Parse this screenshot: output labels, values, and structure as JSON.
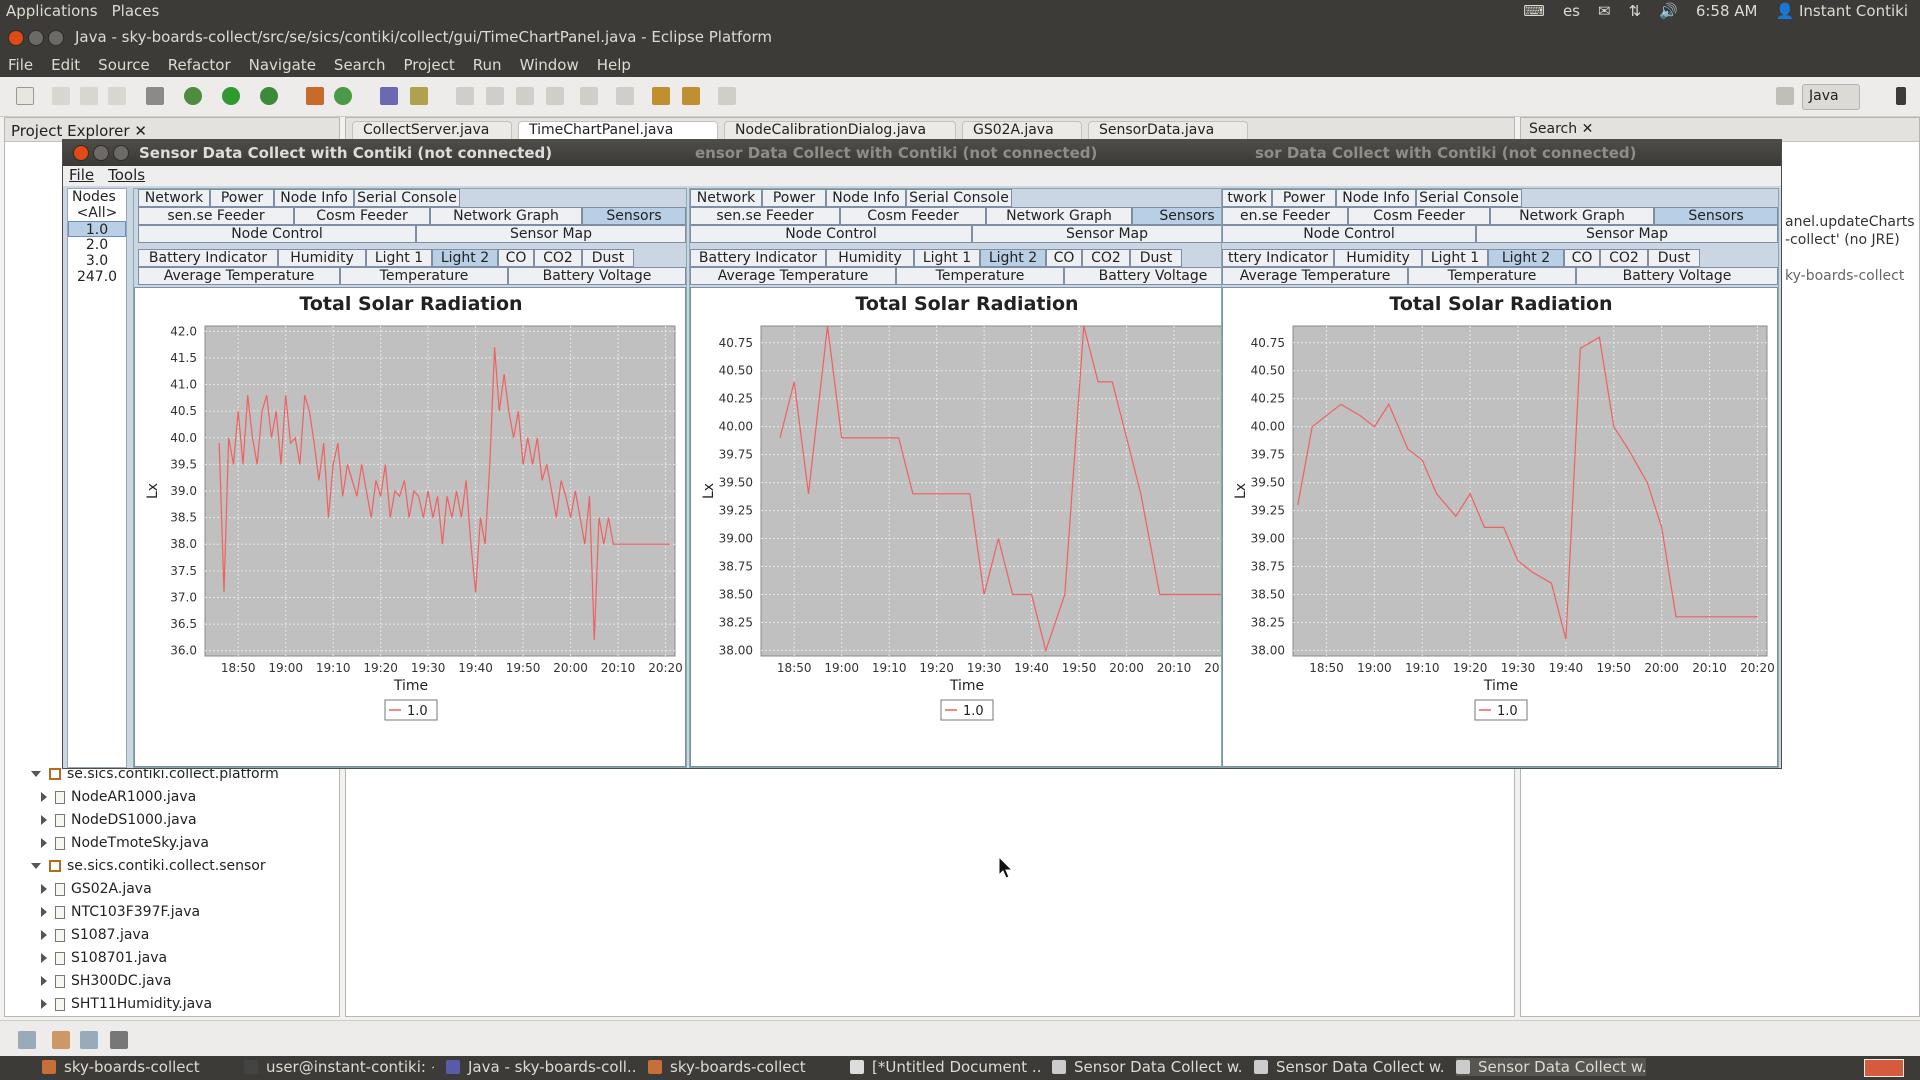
{
  "system": {
    "menu": [
      "Applications",
      "Places"
    ],
    "keyboard": "es",
    "time": "6:58 AM",
    "user": "Instant Contiki"
  },
  "eclipse": {
    "title": "Java - sky-boards-collect/src/se/sics/contiki/collect/gui/TimeChartPanel.java - Eclipse Platform",
    "menu": [
      "File",
      "Edit",
      "Source",
      "Refactor",
      "Navigate",
      "Search",
      "Project",
      "Run",
      "Window",
      "Help"
    ],
    "perspective": "Java",
    "project_explorer": {
      "title": "Project Explorer",
      "items": [
        {
          "label": "se.sics.contiki.collect.platform",
          "kind": "package"
        },
        {
          "label": "NodeAR1000.java",
          "kind": "file"
        },
        {
          "label": "NodeDS1000.java",
          "kind": "file"
        },
        {
          "label": "NodeTmoteSky.java",
          "kind": "file"
        },
        {
          "label": "se.sics.contiki.collect.sensor",
          "kind": "package"
        },
        {
          "label": "GS02A.java",
          "kind": "file"
        },
        {
          "label": "NTC103F397F.java",
          "kind": "file"
        },
        {
          "label": "S1087.java",
          "kind": "file"
        },
        {
          "label": "S108701.java",
          "kind": "file"
        },
        {
          "label": "SH300DC.java",
          "kind": "file"
        },
        {
          "label": "SHT11Humidity.java",
          "kind": "file"
        }
      ]
    },
    "editor_tabs": [
      "CollectServer.java",
      "TimeChartPanel.java",
      "NodeCalibrationDialog.java",
      "GS02A.java",
      "SensorData.java"
    ],
    "right_panel": {
      "title": "Search",
      "line1": "anel.updateCharts",
      "line2": "-collect' (no JRE)",
      "line3": "ky-boards-collect"
    }
  },
  "collect": {
    "title": "Sensor Data Collect with Contiki (not connected)",
    "menu": [
      "File",
      "Tools"
    ],
    "nodes_header": "Nodes",
    "nodes": [
      "<All>",
      "1.0",
      "2.0",
      "3.0",
      "247.0"
    ],
    "selected_node": "1.0",
    "tabs_row1": [
      "Network",
      "Power",
      "Node Info",
      "Serial Console"
    ],
    "tabs_row2": [
      "sen.se Feeder",
      "Cosm Feeder",
      "Network Graph",
      "Sensors"
    ],
    "tabs_row3": [
      "Node Control",
      "Sensor Map"
    ],
    "sensor_tabs_row1": [
      "Battery Indicator",
      "Humidity",
      "Light 1",
      "Light 2",
      "CO",
      "CO2",
      "Dust"
    ],
    "sensor_tabs_row2": [
      "Average Temperature",
      "Temperature",
      "Battery Voltage"
    ],
    "selected_tab": "Sensors",
    "selected_sensor_tab": "Light 2",
    "panel2_row1": [
      "Network",
      "Power",
      "Node Info",
      "Serial Console"
    ],
    "panel3_row1": [
      "twork",
      "Power",
      "Node Info",
      "Serial Console"
    ],
    "panel3_row2": [
      "en.se Feeder",
      "Cosm Feeder",
      "Network Graph",
      "Sensors"
    ],
    "panel3_sensor": [
      "ttery Indicator",
      "Humidity",
      "Light 1",
      "Light 2",
      "CO",
      "CO2",
      "Dust"
    ],
    "dim_titles": [
      "ensor Data Collect with Contiki (not connected)",
      "sor Data Collect with Contiki (not connected)"
    ]
  },
  "taskbar": [
    "sky-boards-collect",
    "user@instant-contiki: ~",
    "Java - sky-boards-coll...",
    "sky-boards-collect",
    "[*Untitled Document ...",
    "Sensor Data Collect w...",
    "Sensor Data Collect w...",
    "Sensor Data Collect w..."
  ],
  "colors": {
    "series": "#f06060",
    "plot_bg": "#c0c0c0",
    "panel_bg": "#cbd6e4"
  },
  "chart_data": [
    {
      "type": "line",
      "title": "Total Solar Radiation",
      "xlabel": "Time",
      "ylabel": "Lx",
      "x_ticks": [
        "18:50",
        "19:00",
        "19:10",
        "19:20",
        "19:30",
        "19:40",
        "19:50",
        "20:00",
        "20:10",
        "20:20"
      ],
      "ylim": [
        35.9,
        42.1
      ],
      "y_ticks": [
        "36.0",
        "36.5",
        "37.0",
        "37.5",
        "38.0",
        "38.5",
        "39.0",
        "39.5",
        "40.0",
        "40.5",
        "41.0",
        "41.5",
        "42.0"
      ],
      "series": [
        {
          "name": "1.0",
          "x": [
            "18:46",
            "18:47",
            "18:48",
            "18:49",
            "18:50",
            "18:51",
            "18:52",
            "18:53",
            "18:54",
            "18:55",
            "18:56",
            "18:57",
            "18:58",
            "18:59",
            "19:00",
            "19:01",
            "19:02",
            "19:03",
            "19:04",
            "19:05",
            "19:06",
            "19:07",
            "19:08",
            "19:09",
            "19:10",
            "19:11",
            "19:12",
            "19:13",
            "19:14",
            "19:15",
            "19:16",
            "19:17",
            "19:18",
            "19:19",
            "19:20",
            "19:21",
            "19:22",
            "19:23",
            "19:24",
            "19:25",
            "19:26",
            "19:27",
            "19:28",
            "19:29",
            "19:30",
            "19:31",
            "19:32",
            "19:33",
            "19:34",
            "19:35",
            "19:36",
            "19:37",
            "19:38",
            "19:39",
            "19:40",
            "19:41",
            "19:42",
            "19:43",
            "19:44",
            "19:45",
            "19:46",
            "19:47",
            "19:48",
            "19:49",
            "19:50",
            "19:51",
            "19:52",
            "19:53",
            "19:54",
            "19:55",
            "19:56",
            "19:57",
            "19:58",
            "19:59",
            "20:00",
            "20:01",
            "20:02",
            "20:03",
            "20:04",
            "20:05",
            "20:06",
            "20:07",
            "20:08",
            "20:09",
            "20:10",
            "20:11",
            "20:12",
            "20:13",
            "20:14",
            "20:15",
            "20:16",
            "20:17",
            "20:18",
            "20:19",
            "20:20",
            "20:21"
          ],
          "values": [
            39.9,
            37.1,
            40.0,
            39.5,
            40.5,
            39.5,
            40.8,
            40.0,
            39.5,
            40.5,
            40.8,
            40.0,
            40.5,
            39.5,
            40.8,
            39.9,
            40.0,
            39.5,
            40.8,
            40.5,
            39.9,
            39.2,
            39.9,
            38.5,
            39.5,
            39.9,
            38.9,
            39.5,
            39.2,
            38.9,
            39.5,
            39.0,
            38.5,
            39.2,
            38.9,
            39.5,
            38.5,
            39.0,
            38.9,
            39.2,
            38.5,
            39.0,
            38.9,
            38.5,
            39.0,
            38.5,
            38.9,
            38.0,
            38.9,
            38.5,
            39.0,
            38.5,
            39.2,
            38.0,
            37.1,
            38.5,
            38.0,
            39.5,
            41.7,
            40.5,
            41.2,
            40.5,
            40.0,
            40.5,
            39.5,
            40.0,
            39.5,
            40.0,
            39.2,
            39.5,
            39.0,
            38.5,
            39.2,
            38.9,
            38.5,
            39.0,
            38.5,
            38.0,
            38.9,
            36.2,
            38.5,
            38.0,
            38.5,
            38.0,
            38.0,
            38.0,
            38.0,
            38.0,
            38.0,
            38.0,
            38.0,
            38.0,
            38.0,
            38.0,
            38.0,
            38.0
          ]
        }
      ]
    },
    {
      "type": "line",
      "title": "Total Solar Radiation",
      "xlabel": "Time",
      "ylabel": "Lx",
      "x_ticks": [
        "18:50",
        "19:00",
        "19:10",
        "19:20",
        "19:30",
        "19:40",
        "19:50",
        "20:00",
        "20:10",
        "20:20"
      ],
      "ylim": [
        37.95,
        40.9
      ],
      "y_ticks": [
        "38.00",
        "38.25",
        "38.50",
        "38.75",
        "39.00",
        "39.25",
        "39.50",
        "39.75",
        "40.00",
        "40.25",
        "40.50",
        "40.75"
      ],
      "series": [
        {
          "name": "1.0",
          "x": [
            "18:47",
            "18:50",
            "18:53",
            "18:57",
            "19:00",
            "19:05",
            "19:10",
            "19:12",
            "19:15",
            "19:20",
            "19:23",
            "19:27",
            "19:30",
            "19:33",
            "19:36",
            "19:40",
            "19:43",
            "19:47",
            "19:51",
            "19:54",
            "19:57",
            "20:00",
            "20:03",
            "20:07",
            "20:10",
            "20:13",
            "20:16",
            "20:20"
          ],
          "values": [
            39.9,
            40.4,
            39.4,
            40.9,
            39.9,
            39.9,
            39.9,
            39.9,
            39.4,
            39.4,
            39.4,
            39.4,
            38.5,
            39.0,
            38.5,
            38.5,
            38.0,
            38.5,
            40.9,
            40.4,
            40.4,
            39.9,
            39.4,
            38.5,
            38.5,
            38.5,
            38.5,
            38.5
          ]
        }
      ]
    },
    {
      "type": "line",
      "title": "Total Solar Radiation",
      "xlabel": "Time",
      "ylabel": "Lx",
      "x_ticks": [
        "18:50",
        "19:00",
        "19:10",
        "19:20",
        "19:30",
        "19:40",
        "19:50",
        "20:00",
        "20:10",
        "20:20"
      ],
      "ylim": [
        37.95,
        40.9
      ],
      "y_ticks": [
        "38.00",
        "38.25",
        "38.50",
        "38.75",
        "39.00",
        "39.25",
        "39.50",
        "39.75",
        "40.00",
        "40.25",
        "40.50",
        "40.75"
      ],
      "series": [
        {
          "name": "1.0",
          "x": [
            "18:44",
            "18:47",
            "18:53",
            "18:57",
            "19:00",
            "19:03",
            "19:07",
            "19:10",
            "19:13",
            "19:17",
            "19:20",
            "19:23",
            "19:27",
            "19:30",
            "19:33",
            "19:37",
            "19:40",
            "19:43",
            "19:47",
            "19:50",
            "19:53",
            "19:57",
            "20:00",
            "20:03",
            "20:07",
            "20:10",
            "20:13",
            "20:16",
            "20:20"
          ],
          "values": [
            39.3,
            40.0,
            40.2,
            40.1,
            40.0,
            40.2,
            39.8,
            39.7,
            39.4,
            39.2,
            39.4,
            39.1,
            39.1,
            38.8,
            38.7,
            38.6,
            38.1,
            40.7,
            40.8,
            40.0,
            39.8,
            39.5,
            39.1,
            38.3,
            38.3,
            38.3,
            38.3,
            38.3,
            38.3
          ]
        }
      ]
    }
  ]
}
